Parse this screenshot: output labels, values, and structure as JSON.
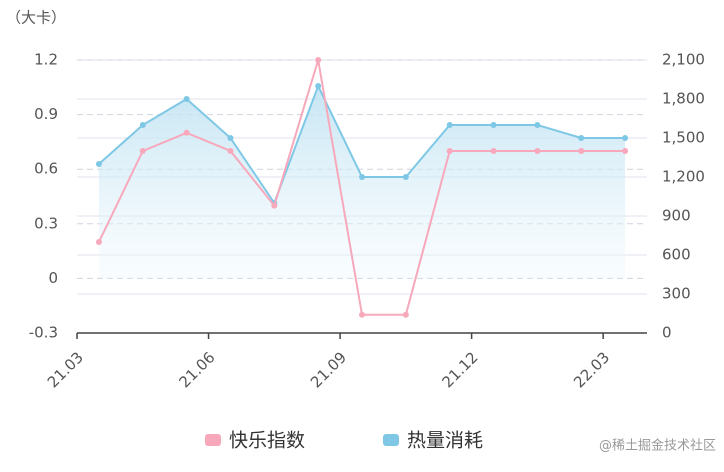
{
  "chart_data": {
    "type": "line",
    "unit_label": "（大卡）",
    "watermark": "@稀土掘金技术社区",
    "categories": [
      "21.03",
      null,
      null,
      "21.06",
      null,
      null,
      "21.09",
      null,
      null,
      "21.12",
      null,
      null,
      "22.03"
    ],
    "series": [
      {
        "name": "快乐指数",
        "color": "#f7a8bb",
        "axis": "y",
        "values": [
          0.2,
          0.7,
          0.8,
          0.7,
          0.4,
          1.2,
          -0.2,
          -0.2,
          0.7,
          0.7,
          0.7,
          0.7,
          0.7
        ]
      },
      {
        "name": "热量消耗",
        "color": "#7ec8e6",
        "axis": "y2",
        "values": [
          1300,
          1600,
          1800,
          1500,
          1000,
          1900,
          1200,
          1200,
          1600,
          1600,
          1600,
          1500,
          1500
        ]
      }
    ],
    "ylim": [
      -0.3,
      1.2
    ],
    "yticks": [
      -0.3,
      0,
      0.3,
      0.6,
      0.9,
      1.2
    ],
    "y2lim": [
      0,
      2100
    ],
    "y2ticks": [
      0,
      300,
      600,
      900,
      {
        "value": 1200,
        "label": "1,200"
      },
      {
        "value": 1500,
        "label": "1,500"
      },
      {
        "value": 1800,
        "label": "1,800"
      },
      {
        "value": 2100,
        "label": "2,100"
      }
    ]
  }
}
